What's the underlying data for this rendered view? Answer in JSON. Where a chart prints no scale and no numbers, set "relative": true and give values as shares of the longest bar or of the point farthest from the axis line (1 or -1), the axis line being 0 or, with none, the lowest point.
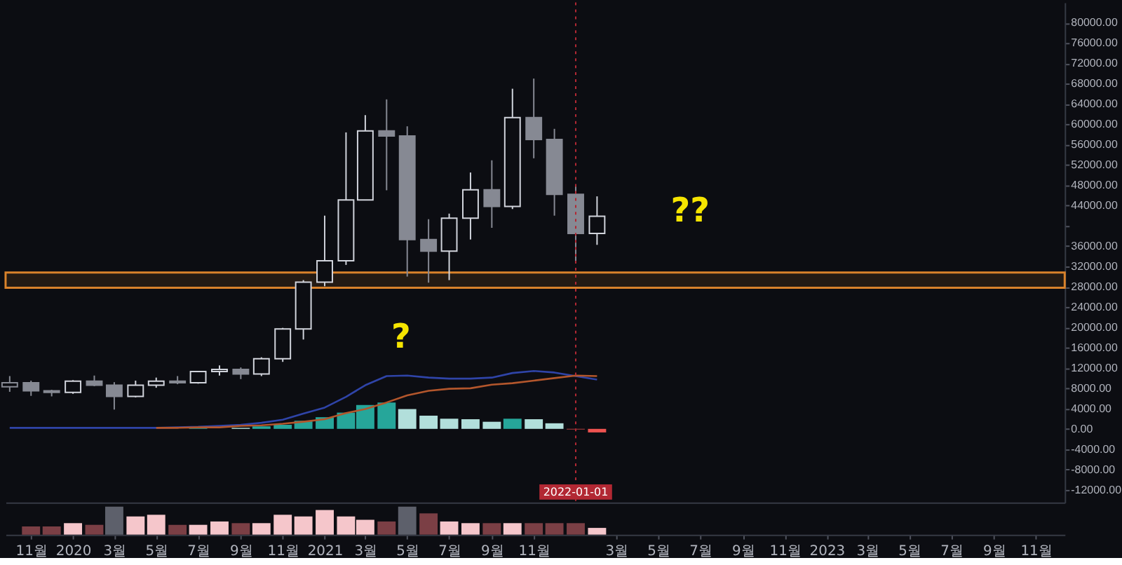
{
  "chart_data": [
    {
      "type": "candlestick",
      "x": [
        "2019-10",
        "2019-11",
        "2019-12",
        "2020-01",
        "2020-02",
        "2020-03",
        "2020-04",
        "2020-05",
        "2020-06",
        "2020-07",
        "2020-08",
        "2020-09",
        "2020-10",
        "2020-11",
        "2020-12",
        "2021-01",
        "2021-02",
        "2021-03",
        "2021-04",
        "2021-05",
        "2021-06",
        "2021-07",
        "2021-08",
        "2021-09",
        "2021-10",
        "2021-11",
        "2021-12",
        "2022-01",
        "2022-02"
      ],
      "ohlc": [
        [
          8300,
          10400,
          7300,
          9100
        ],
        [
          9100,
          9500,
          6500,
          7500
        ],
        [
          7500,
          7700,
          6400,
          7200
        ],
        [
          7200,
          9600,
          6900,
          9400
        ],
        [
          9400,
          10500,
          8400,
          8600
        ],
        [
          8600,
          9200,
          3800,
          6400
        ],
        [
          6400,
          9500,
          6200,
          8600
        ],
        [
          8600,
          10100,
          8100,
          9400
        ],
        [
          9400,
          10400,
          8800,
          9100
        ],
        [
          9100,
          11400,
          8900,
          11300
        ],
        [
          11300,
          12500,
          10500,
          11700
        ],
        [
          11700,
          12100,
          9800,
          10800
        ],
        [
          10800,
          14100,
          10400,
          13800
        ],
        [
          13800,
          19900,
          13200,
          19700
        ],
        [
          19700,
          29300,
          17600,
          28900
        ],
        [
          28900,
          42000,
          28100,
          33100
        ],
        [
          33100,
          58400,
          32300,
          45100
        ],
        [
          45100,
          61800,
          45000,
          58700
        ],
        [
          58700,
          64900,
          47000,
          57700
        ],
        [
          57700,
          59600,
          30000,
          37300
        ],
        [
          37300,
          41300,
          28800,
          35000
        ],
        [
          35000,
          42400,
          29300,
          41500
        ],
        [
          41500,
          50500,
          37300,
          47100
        ],
        [
          47100,
          52900,
          39600,
          43800
        ],
        [
          43800,
          67000,
          43300,
          61300
        ],
        [
          61300,
          69000,
          53300,
          57000
        ],
        [
          57000,
          59100,
          42000,
          46200
        ],
        [
          46200,
          48000,
          32900,
          38500
        ],
        [
          38500,
          45800,
          36250,
          41880
        ]
      ],
      "colors": [
        "#868993",
        "#868993",
        "#868993",
        "#d1d4dc",
        "#868993",
        "#868993",
        "#d1d4dc",
        "#d1d4dc",
        "#868993",
        "#d1d4dc",
        "#d1d4dc",
        "#868993",
        "#d1d4dc",
        "#d1d4dc",
        "#d1d4dc",
        "#d1d4dc",
        "#d1d4dc",
        "#d1d4dc",
        "#868993",
        "#868993",
        "#868993",
        "#d1d4dc",
        "#d1d4dc",
        "#868993",
        "#d1d4dc",
        "#868993",
        "#868993",
        "#868993",
        "#d1d4dc"
      ],
      "series": [
        {
          "type": "bar",
          "values": [
            null,
            null,
            null,
            null,
            null,
            null,
            null,
            null,
            null,
            100,
            null,
            200,
            500,
            800,
            1600,
            2300,
            3200,
            4700,
            5200,
            3900,
            2600,
            2000,
            1900,
            1400,
            2000,
            1900,
            1100,
            -100,
            -700
          ],
          "colors": [
            "#26a69a",
            "#26a69a",
            "#26a69a",
            "#26a69a",
            "#26a69a",
            "#26a69a",
            "#26a69a",
            "#26a69a",
            "#26a69a",
            "#26a69a",
            "#26a69a",
            "#b2dfdb",
            "#26a69a",
            "#26a69a",
            "#26a69a",
            "#26a69a",
            "#26a69a",
            "#26a69a",
            "#26a69a",
            "#b2dfdb",
            "#b2dfdb",
            "#b2dfdb",
            "#b2dfdb",
            "#b2dfdb",
            "#26a69a",
            "#b2dfdb",
            "#b2dfdb",
            "#ef5350",
            "#ef5350"
          ]
        },
        {
          "type": "line",
          "color": "#2f44a8",
          "values": [
            200,
            200,
            200,
            200,
            200,
            200,
            200,
            200,
            300,
            400,
            600,
            800,
            1200,
            1800,
            3000,
            4200,
            6300,
            8600,
            10400,
            10500,
            10100,
            9900,
            9900,
            10100,
            11000,
            11400,
            11100,
            10400,
            9700
          ]
        },
        {
          "type": "line",
          "color": "#b3562c",
          "values": [
            null,
            null,
            null,
            null,
            null,
            null,
            null,
            200,
            200,
            300,
            300,
            600,
            700,
            1000,
            1400,
            1900,
            3100,
            3900,
            5200,
            6600,
            7500,
            7900,
            8000,
            8700,
            9000,
            9500,
            10000,
            10500,
            10400
          ]
        }
      ],
      "xlim": [
        "2019-09-25",
        "2023-12-13"
      ],
      "ylim": [
        -14500,
        84000
      ],
      "yticks": [
        {
          "value": 80000,
          "label": "80000.00"
        },
        {
          "value": 76000,
          "label": "76000.00"
        },
        {
          "value": 72000,
          "label": "72000.00"
        },
        {
          "value": 68000,
          "label": "68000.00"
        },
        {
          "value": 64000,
          "label": "64000.00"
        },
        {
          "value": 60000,
          "label": "60000.00"
        },
        {
          "value": 56000,
          "label": "56000.00"
        },
        {
          "value": 52000,
          "label": "52000.00"
        },
        {
          "value": 48000,
          "label": "48000.00"
        },
        {
          "value": 44000,
          "label": "44000.00"
        },
        {
          "value": 40000,
          "label": null
        },
        {
          "value": 36000,
          "label": "36000.00"
        },
        {
          "value": 32000,
          "label": "32000.00"
        },
        {
          "value": 28000,
          "label": "28000.00"
        },
        {
          "value": 24000,
          "label": "24000.00"
        },
        {
          "value": 20000,
          "label": "20000.00"
        },
        {
          "value": 16000,
          "label": "16000.00"
        },
        {
          "value": 12000,
          "label": "12000.00"
        },
        {
          "value": 8000,
          "label": "8000.00"
        },
        {
          "value": 4000,
          "label": "4000.00"
        },
        {
          "value": 0,
          "label": "0.00"
        },
        {
          "value": -4000,
          "label": "-4000.00"
        },
        {
          "value": -8000,
          "label": "-8000.00"
        },
        {
          "value": -12000,
          "label": "-12000.00"
        }
      ],
      "tick_labels": "y",
      "bands": [
        {
          "axis": "y",
          "from": 27800,
          "to": 30800,
          "color": "#d9822b"
        }
      ],
      "ref_lines": [
        {
          "axis": "x",
          "value": "2022-01-01",
          "label": "2022-01-01",
          "color": "#b22833",
          "line_style": "dotted"
        }
      ],
      "annotations": [
        "?",
        "??"
      ]
    },
    {
      "type": "bar",
      "relative": true,
      "x": [
        "2019-11",
        "2019-12",
        "2020-01",
        "2020-02",
        "2020-03",
        "2020-04",
        "2020-05",
        "2020-06",
        "2020-07",
        "2020-08",
        "2020-09",
        "2020-10",
        "2020-11",
        "2020-12",
        "2021-01",
        "2021-02",
        "2021-03",
        "2021-04",
        "2021-05",
        "2021-06",
        "2021-07",
        "2021-08",
        "2021-09",
        "2021-10",
        "2021-11",
        "2021-12",
        "2022-01",
        "2022-02"
      ],
      "values": [
        0.29,
        0.29,
        0.41,
        0.35,
        1.0,
        0.65,
        0.71,
        0.35,
        0.35,
        0.47,
        0.41,
        0.41,
        0.71,
        0.65,
        0.88,
        0.65,
        0.53,
        0.47,
        1.0,
        0.76,
        0.47,
        0.41,
        0.41,
        0.41,
        0.41,
        0.41,
        0.41,
        0.24
      ],
      "colors": [
        "#7b3f45",
        "#7b3f45",
        "#f5c6cb",
        "#7b3f45",
        "#5d606b",
        "#f5c6cb",
        "#f5c6cb",
        "#7b3f45",
        "#f5c6cb",
        "#f5c6cb",
        "#7b3f45",
        "#f5c6cb",
        "#f5c6cb",
        "#f5c6cb",
        "#f5c6cb",
        "#f5c6cb",
        "#f5c6cb",
        "#7b3f45",
        "#5d606b",
        "#7b3f45",
        "#f5c6cb",
        "#f5c6cb",
        "#7b3f45",
        "#f5c6cb",
        "#7b3f45",
        "#7b3f45",
        "#7b3f45",
        "#f5c6cb"
      ],
      "xlim": [
        "2019-09-25",
        "2023-12-13"
      ],
      "xticks": [
        {
          "value": "2019-11",
          "label": "11월"
        },
        {
          "value": "2020-01",
          "label": "2020"
        },
        {
          "value": "2020-03",
          "label": "3월"
        },
        {
          "value": "2020-05",
          "label": "5월"
        },
        {
          "value": "2020-07",
          "label": "7월"
        },
        {
          "value": "2020-09",
          "label": "9월"
        },
        {
          "value": "2020-11",
          "label": "11월"
        },
        {
          "value": "2021-01",
          "label": "2021"
        },
        {
          "value": "2021-03",
          "label": "3월"
        },
        {
          "value": "2021-05",
          "label": "5월"
        },
        {
          "value": "2021-07",
          "label": "7월"
        },
        {
          "value": "2021-09",
          "label": "9월"
        },
        {
          "value": "2021-11",
          "label": "11월"
        },
        {
          "value": "2022-03",
          "label": "3월"
        },
        {
          "value": "2022-05",
          "label": "5월"
        },
        {
          "value": "2022-07",
          "label": "7월"
        },
        {
          "value": "2022-09",
          "label": "9월"
        },
        {
          "value": "2022-11",
          "label": "11월"
        },
        {
          "value": "2023-01",
          "label": "2023"
        },
        {
          "value": "2023-03",
          "label": "3월"
        },
        {
          "value": "2023-05",
          "label": "5월"
        },
        {
          "value": "2023-07",
          "label": "7월"
        },
        {
          "value": "2023-09",
          "label": "9월"
        },
        {
          "value": "2023-11",
          "label": "11월"
        }
      ],
      "tick_labels": "x"
    }
  ]
}
